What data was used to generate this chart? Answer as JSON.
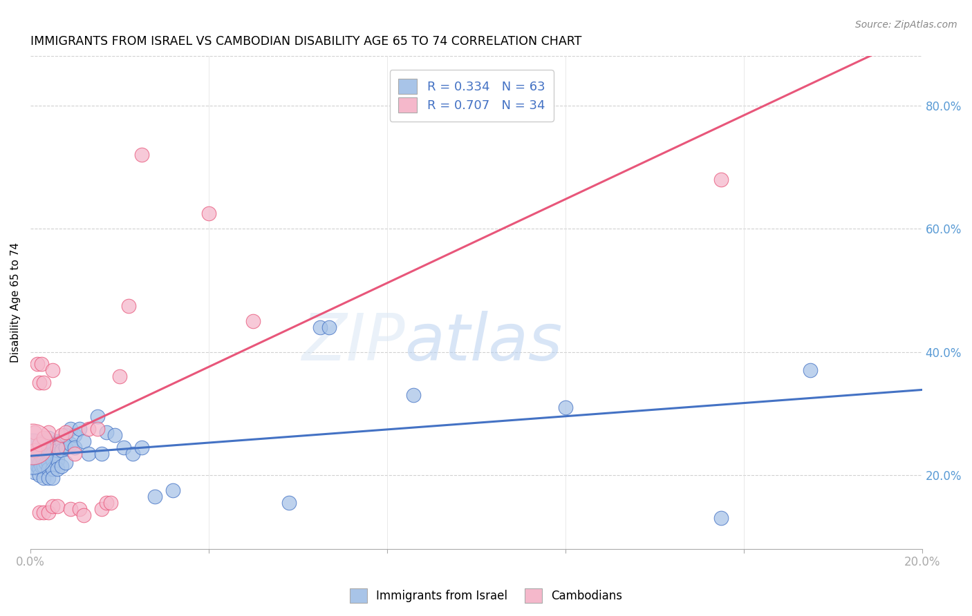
{
  "title": "IMMIGRANTS FROM ISRAEL VS CAMBODIAN DISABILITY AGE 65 TO 74 CORRELATION CHART",
  "source": "Source: ZipAtlas.com",
  "ylabel": "Disability Age 65 to 74",
  "xlim": [
    0.0,
    0.2
  ],
  "ylim": [
    0.08,
    0.88
  ],
  "xticks": [
    0.0,
    0.04,
    0.08,
    0.12,
    0.16,
    0.2
  ],
  "xtick_labels": [
    "0.0%",
    "",
    "",
    "",
    "",
    "20.0%"
  ],
  "yticks_right": [
    0.2,
    0.4,
    0.6,
    0.8
  ],
  "ytick_right_labels": [
    "20.0%",
    "40.0%",
    "60.0%",
    "80.0%"
  ],
  "legend1_label": "R = 0.334   N = 63",
  "legend2_label": "R = 0.707   N = 34",
  "israel_color": "#a8c4e8",
  "cambodian_color": "#f5b8cb",
  "israel_line_color": "#4472c4",
  "cambodian_line_color": "#e8567a",
  "watermark_zip": "ZIP",
  "watermark_atlas": "atlas",
  "israel_x": [
    0.0005,
    0.001,
    0.001,
    0.0015,
    0.0015,
    0.002,
    0.002,
    0.002,
    0.002,
    0.0025,
    0.0025,
    0.003,
    0.003,
    0.003,
    0.003,
    0.003,
    0.0035,
    0.0035,
    0.004,
    0.004,
    0.004,
    0.004,
    0.004,
    0.004,
    0.0045,
    0.005,
    0.005,
    0.005,
    0.005,
    0.005,
    0.006,
    0.006,
    0.006,
    0.006,
    0.007,
    0.007,
    0.007,
    0.008,
    0.008,
    0.008,
    0.009,
    0.009,
    0.01,
    0.01,
    0.011,
    0.012,
    0.013,
    0.015,
    0.016,
    0.017,
    0.019,
    0.021,
    0.023,
    0.025,
    0.028,
    0.032,
    0.058,
    0.065,
    0.067,
    0.086,
    0.12,
    0.155,
    0.175
  ],
  "israel_y": [
    0.235,
    0.22,
    0.205,
    0.23,
    0.215,
    0.24,
    0.22,
    0.21,
    0.2,
    0.23,
    0.215,
    0.245,
    0.235,
    0.225,
    0.215,
    0.195,
    0.24,
    0.22,
    0.26,
    0.245,
    0.235,
    0.22,
    0.21,
    0.195,
    0.235,
    0.25,
    0.235,
    0.225,
    0.21,
    0.195,
    0.255,
    0.24,
    0.225,
    0.21,
    0.255,
    0.24,
    0.215,
    0.265,
    0.245,
    0.22,
    0.275,
    0.25,
    0.265,
    0.245,
    0.275,
    0.255,
    0.235,
    0.295,
    0.235,
    0.27,
    0.265,
    0.245,
    0.235,
    0.245,
    0.165,
    0.175,
    0.155,
    0.44,
    0.44,
    0.33,
    0.31,
    0.13,
    0.37
  ],
  "cambodian_x": [
    0.0005,
    0.001,
    0.001,
    0.0015,
    0.002,
    0.002,
    0.002,
    0.0025,
    0.003,
    0.003,
    0.003,
    0.004,
    0.004,
    0.005,
    0.005,
    0.006,
    0.006,
    0.007,
    0.008,
    0.009,
    0.01,
    0.011,
    0.012,
    0.013,
    0.015,
    0.016,
    0.017,
    0.018,
    0.02,
    0.022,
    0.025,
    0.04,
    0.05,
    0.155
  ],
  "cambodian_y": [
    0.25,
    0.27,
    0.24,
    0.38,
    0.25,
    0.35,
    0.14,
    0.38,
    0.26,
    0.35,
    0.14,
    0.27,
    0.14,
    0.37,
    0.15,
    0.245,
    0.15,
    0.265,
    0.27,
    0.145,
    0.235,
    0.145,
    0.135,
    0.275,
    0.275,
    0.145,
    0.155,
    0.155,
    0.36,
    0.475,
    0.72,
    0.625,
    0.45,
    0.68
  ],
  "israel_marker_size": 300,
  "cambodian_marker_size": 300,
  "israel_large_x": [
    0.0005
  ],
  "israel_large_y": [
    0.235
  ],
  "israel_large_size": 1200
}
